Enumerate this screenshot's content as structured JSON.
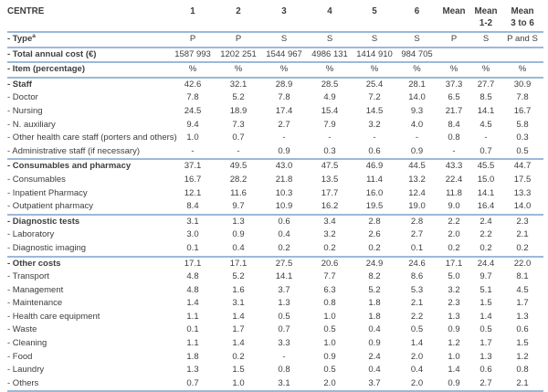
{
  "colors": {
    "rule_line": "#9db8d9",
    "text": "#3d3d3d"
  },
  "header": {
    "centre": "CENTRE",
    "columns": [
      {
        "line1": "1",
        "line2": ""
      },
      {
        "line1": "2",
        "line2": ""
      },
      {
        "line1": "3",
        "line2": ""
      },
      {
        "line1": "4",
        "line2": ""
      },
      {
        "line1": "5",
        "line2": ""
      },
      {
        "line1": "6",
        "line2": ""
      },
      {
        "line1": "Mean",
        "line2": ""
      },
      {
        "line1": "Mean",
        "line2": "1-2"
      },
      {
        "line1": "Mean",
        "line2": "3 to 6"
      }
    ]
  },
  "rows": [
    {
      "label": "- Type",
      "sup": "a",
      "bold": true,
      "rule_below": true,
      "values": [
        "P",
        "P",
        "S",
        "S",
        "S",
        "S",
        "P",
        "S",
        "P and S"
      ]
    },
    {
      "label": "- Total annual cost (€)",
      "bold": true,
      "rule_below": true,
      "values": [
        "1587 993",
        "1202 251",
        "1544 967",
        "4986 131",
        "1414 910",
        "984 705",
        "",
        "",
        ""
      ]
    },
    {
      "label": "- Item (percentage)",
      "bold": true,
      "rule_below": true,
      "values": [
        "%",
        "%",
        "%",
        "%",
        "%",
        "%",
        "%",
        "%",
        "%"
      ]
    },
    {
      "label": "- Staff",
      "bold": true,
      "rule_below": false,
      "values": [
        "42.6",
        "32.1",
        "28.9",
        "28.5",
        "25.4",
        "28.1",
        "37.3",
        "27.7",
        "30.9"
      ]
    },
    {
      "label": "- Doctor",
      "bold": false,
      "rule_below": false,
      "values": [
        "7.8",
        "5.2",
        "7.8",
        "4.9",
        "7.2",
        "14.0",
        "6.5",
        "8.5",
        "7.8"
      ]
    },
    {
      "label": "- Nursing",
      "bold": false,
      "rule_below": false,
      "values": [
        "24.5",
        "18.9",
        "17.4",
        "15.4",
        "14.5",
        "9.3",
        "21.7",
        "14.1",
        "16.7"
      ]
    },
    {
      "label": "- N. auxiliary",
      "bold": false,
      "rule_below": false,
      "values": [
        "9.4",
        "7.3",
        "2.7",
        "7.9",
        "3.2",
        "4.0",
        "8.4",
        "4.5",
        "5.8"
      ]
    },
    {
      "label": "- Other health care staff (porters and others)",
      "bold": false,
      "rule_below": false,
      "values": [
        "1.0",
        "0.7",
        "-",
        "-",
        "-",
        "-",
        "0.8",
        "-",
        "0.3"
      ]
    },
    {
      "label": "- Administrative staff (if necessary)",
      "bold": false,
      "rule_below": true,
      "values": [
        "-",
        "-",
        "0.9",
        "0.3",
        "0.6",
        "0.9",
        "-",
        "0.7",
        "0.5"
      ]
    },
    {
      "label": "- Consumables and pharmacy",
      "bold": true,
      "rule_below": false,
      "values": [
        "37.1",
        "49.5",
        "43.0",
        "47.5",
        "46.9",
        "44.5",
        "43.3",
        "45.5",
        "44.7"
      ]
    },
    {
      "label": "- Consumables",
      "bold": false,
      "rule_below": false,
      "values": [
        "16.7",
        "28.2",
        "21.8",
        "13.5",
        "11.4",
        "13.2",
        "22.4",
        "15.0",
        "17.5"
      ]
    },
    {
      "label": "- Inpatient Pharmacy",
      "bold": false,
      "rule_below": false,
      "values": [
        "12.1",
        "11.6",
        "10.3",
        "17.7",
        "16.0",
        "12.4",
        "11.8",
        "14.1",
        "13.3"
      ]
    },
    {
      "label": "- Outpatient pharmacy",
      "bold": false,
      "rule_below": true,
      "values": [
        "8.4",
        "9.7",
        "10.9",
        "16.2",
        "19.5",
        "19.0",
        "9.0",
        "16.4",
        "14.0"
      ]
    },
    {
      "label": "- Diagnostic tests",
      "bold": true,
      "rule_below": false,
      "values": [
        "3.1",
        "1.3",
        "0.6",
        "3.4",
        "2.8",
        "2.8",
        "2.2",
        "2.4",
        "2.3"
      ]
    },
    {
      "label": "- Laboratory",
      "bold": false,
      "rule_below": false,
      "values": [
        "3.0",
        "0.9",
        "0.4",
        "3.2",
        "2.6",
        "2.7",
        "2.0",
        "2.2",
        "2.1"
      ]
    },
    {
      "label": "- Diagnostic imaging",
      "bold": false,
      "rule_below": true,
      "values": [
        "0.1",
        "0.4",
        "0.2",
        "0.2",
        "0.2",
        "0.1",
        "0.2",
        "0.2",
        "0.2"
      ]
    },
    {
      "label": "- Other costs",
      "bold": true,
      "rule_below": false,
      "values": [
        "17.1",
        "17.1",
        "27.5",
        "20.6",
        "24.9",
        "24.6",
        "17.1",
        "24.4",
        "22.0"
      ]
    },
    {
      "label": "- Transport",
      "bold": false,
      "rule_below": false,
      "values": [
        "4.8",
        "5.2",
        "14.1",
        "7.7",
        "8.2",
        "8.6",
        "5.0",
        "9.7",
        "8.1"
      ]
    },
    {
      "label": "- Management",
      "bold": false,
      "rule_below": false,
      "values": [
        "4.8",
        "1.6",
        "3.7",
        "6.3",
        "5.2",
        "5.3",
        "3.2",
        "5.1",
        "4.5"
      ]
    },
    {
      "label": "- Maintenance",
      "bold": false,
      "rule_below": false,
      "values": [
        "1.4",
        "3.1",
        "1.3",
        "0.8",
        "1.8",
        "2.1",
        "2.3",
        "1.5",
        "1.7"
      ]
    },
    {
      "label": "- Health care equipment",
      "bold": false,
      "rule_below": false,
      "values": [
        "1.1",
        "1.4",
        "0.5",
        "1.0",
        "1.8",
        "2.2",
        "1.3",
        "1.4",
        "1.3"
      ]
    },
    {
      "label": "- Waste",
      "bold": false,
      "rule_below": false,
      "values": [
        "0.1",
        "1.7",
        "0.7",
        "0.5",
        "0.4",
        "0.5",
        "0.9",
        "0.5",
        "0.6"
      ]
    },
    {
      "label": "- Cleaning",
      "bold": false,
      "rule_below": false,
      "values": [
        "1.1",
        "1.4",
        "3.3",
        "1.0",
        "0.9",
        "1.4",
        "1.2",
        "1.7",
        "1.5"
      ]
    },
    {
      "label": "- Food",
      "bold": false,
      "rule_below": false,
      "values": [
        "1.8",
        "0.2",
        "-",
        "0.9",
        "2.4",
        "2.0",
        "1.0",
        "1.3",
        "1.2"
      ]
    },
    {
      "label": "- Laundry",
      "bold": false,
      "rule_below": false,
      "values": [
        "1.3",
        "1.5",
        "0.8",
        "0.5",
        "0.4",
        "0.4",
        "1.4",
        "0.6",
        "0.8"
      ]
    },
    {
      "label": "- Others",
      "bold": false,
      "rule_below": true,
      "values": [
        "0.7",
        "1.0",
        "3.1",
        "2.0",
        "3.7",
        "2.0",
        "0.9",
        "2.7",
        "2.1"
      ]
    }
  ]
}
